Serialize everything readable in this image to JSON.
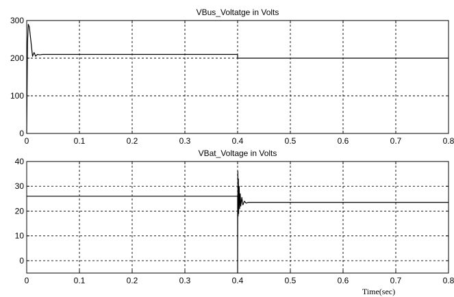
{
  "chart_data": [
    {
      "type": "line",
      "title": "VBus_Voltatge  in Volts",
      "xlim": [
        0,
        0.8
      ],
      "ylim": [
        0,
        300
      ],
      "xticks": [
        0,
        0.1,
        0.2,
        0.3,
        0.4,
        0.5,
        0.6,
        0.7,
        0.8
      ],
      "yticks": [
        0,
        100,
        200,
        300
      ],
      "xtick_labels": [
        "0",
        "0.1",
        "0.2",
        "0.3",
        "0.4",
        "0.5",
        "0.6",
        "0.7",
        "0.8"
      ],
      "ytick_labels": [
        "0",
        "100",
        "200",
        "300"
      ],
      "xlabel": "",
      "ylabel": "",
      "grid": true,
      "series": [
        {
          "x": [
            0,
            0.0015,
            0.003,
            0.005,
            0.008,
            0.011,
            0.014,
            0.017,
            0.02,
            0.025,
            0.03,
            0.4,
            0.4,
            0.8
          ],
          "y": [
            0,
            240,
            290,
            283,
            245,
            205,
            215,
            205,
            210,
            209,
            210,
            210,
            200,
            200
          ]
        }
      ]
    },
    {
      "type": "line",
      "title": "VBat_Voltage  in Volts",
      "xlim": [
        0,
        0.8
      ],
      "ylim": [
        -5,
        40
      ],
      "xticks": [
        0,
        0.1,
        0.2,
        0.3,
        0.4,
        0.5,
        0.6,
        0.7,
        0.8
      ],
      "yticks": [
        0,
        10,
        20,
        30,
        40
      ],
      "xtick_labels": [
        "0",
        "0.1",
        "0.2",
        "0.3",
        "0.4",
        "0.5",
        "0.6",
        "0.7",
        "0.8"
      ],
      "ytick_labels": [
        "0",
        "10",
        "20",
        "30",
        "40"
      ],
      "xlabel": "Time(sec)",
      "ylabel": "",
      "grid": true,
      "series": [
        {
          "x": [
            0,
            0.4,
            0.4,
            0.4005,
            0.401,
            0.4015,
            0.402,
            0.403,
            0.404,
            0.405,
            0.406,
            0.408,
            0.41,
            0.413,
            0.416,
            0.42,
            0.8
          ],
          "y": [
            26,
            26,
            -5,
            36,
            18,
            33,
            19,
            30,
            21,
            27,
            22,
            25.5,
            22.5,
            24,
            23.2,
            23.5,
            23.5
          ]
        }
      ]
    }
  ]
}
